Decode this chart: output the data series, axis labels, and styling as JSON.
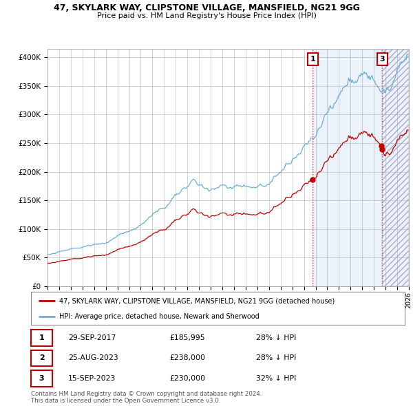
{
  "title_line1": "47, SKYLARK WAY, CLIPSTONE VILLAGE, MANSFIELD, NG21 9GG",
  "title_line2": "Price paid vs. HM Land Registry's House Price Index (HPI)",
  "ylabel_ticks": [
    "£0",
    "£50K",
    "£100K",
    "£150K",
    "£200K",
    "£250K",
    "£300K",
    "£350K",
    "£400K"
  ],
  "ylabel_values": [
    0,
    50000,
    100000,
    150000,
    200000,
    250000,
    300000,
    350000,
    400000
  ],
  "ylim": [
    0,
    415000
  ],
  "xlim_start": 1995.25,
  "xlim_end": 2026.0,
  "hpi_color": "#6aaed6",
  "price_color": "#c00000",
  "dashed_line_color": "#e06060",
  "grid_color": "#cccccc",
  "background_color": "#ffffff",
  "legend_label_red": "47, SKYLARK WAY, CLIPSTONE VILLAGE, MANSFIELD, NG21 9GG (detached house)",
  "legend_label_blue": "HPI: Average price, detached house, Newark and Sherwood",
  "transactions": [
    {
      "num": 1,
      "date": "29-SEP-2017",
      "price": "£185,995",
      "hpi": "28% ↓ HPI",
      "year": 2017.75
    },
    {
      "num": 2,
      "date": "25-AUG-2023",
      "price": "£238,000",
      "hpi": "28% ↓ HPI",
      "year": 2023.645
    },
    {
      "num": 3,
      "date": "15-SEP-2023",
      "price": "£230,000",
      "hpi": "32% ↓ HPI",
      "year": 2023.71
    }
  ],
  "footnote": "Contains HM Land Registry data © Crown copyright and database right 2024.\nThis data is licensed under the Open Government Licence v3.0.",
  "hatch_region_start": 2017.75,
  "hatch_region_end": 2026.0,
  "hatch2_start": 2023.71,
  "hatch2_end": 2026.0
}
